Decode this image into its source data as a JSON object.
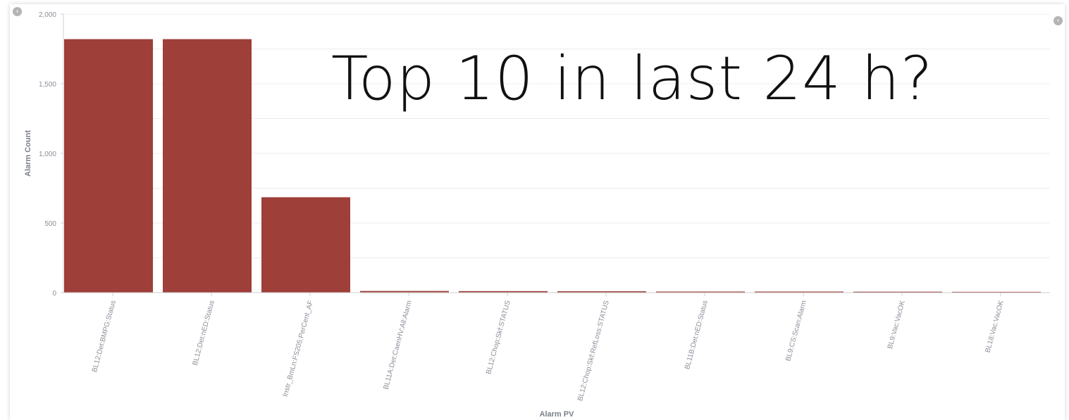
{
  "overlay": {
    "caption": "Top 10 in last 24 h?"
  },
  "controls": {
    "collapse_left_icon": "chevron-left-circle",
    "collapse_right_icon": "chevron-left-circle"
  },
  "colors": {
    "bar": "#9e3f3a",
    "grid": "#ececec",
    "axis": "#cfcfcf",
    "tick_text": "#8a8f98",
    "axis_title": "#7a8089"
  },
  "chart_data": {
    "type": "bar",
    "title": "",
    "xlabel": "Alarm PV",
    "ylabel": "Alarm Count",
    "ylim": [
      0,
      2000
    ],
    "yticks": [
      0,
      500,
      1000,
      1500,
      2000
    ],
    "ytick_labels": [
      "0",
      "500",
      "1,000",
      "1,500",
      "2,000"
    ],
    "grid": true,
    "legend": "none",
    "categories": [
      "BL12:Det:BMPG:Status",
      "BL12:Det:nED:Status",
      "Instr_BmLn:FS205:PerCent_AF",
      "BL11A:Det:CaenHV:All:Alarm",
      "BL12:Chop:Skf:STATUS",
      "BL12:Chop:Skf:RefLoss:STATUS",
      "BL11B:Det:nED:Status",
      "BL9:CS:Scan:Alarm",
      "BL9:Vac:VacOK",
      "BL18:Vac:VacOK"
    ],
    "values": [
      1820,
      1820,
      685,
      12,
      11,
      10,
      8,
      8,
      7,
      6
    ]
  }
}
